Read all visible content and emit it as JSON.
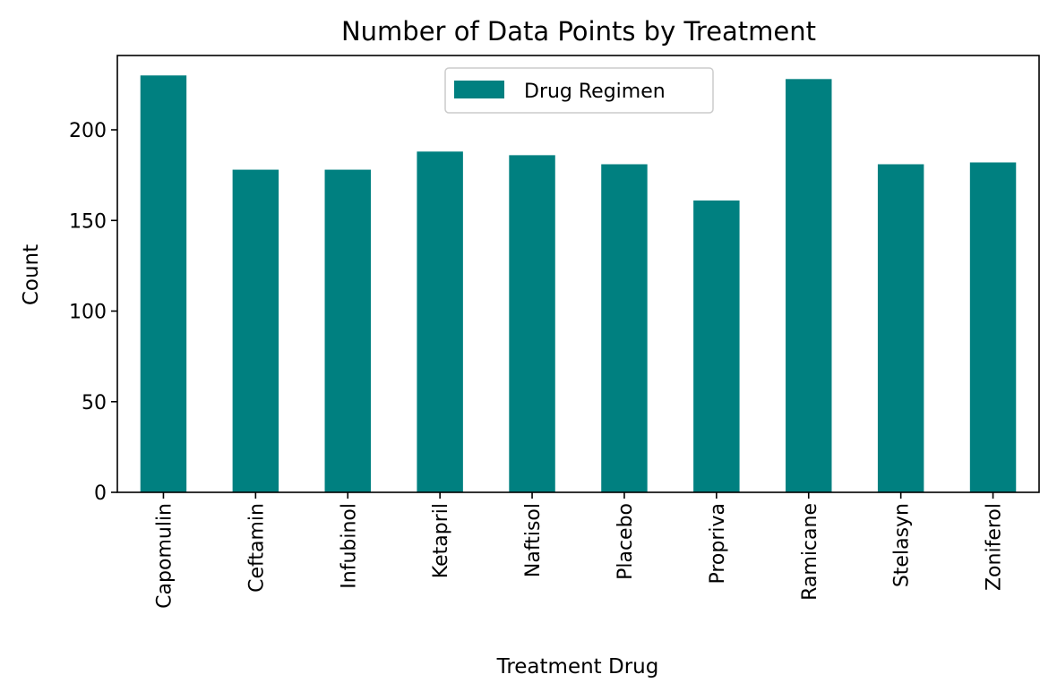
{
  "chart_data": {
    "type": "bar",
    "title": "Number of Data Points by Treatment",
    "xlabel": "Treatment Drug",
    "ylabel": "Count",
    "categories": [
      "Capomulin",
      "Ceftamin",
      "Infubinol",
      "Ketapril",
      "Naftisol",
      "Placebo",
      "Propriva",
      "Ramicane",
      "Stelasyn",
      "Zoniferol"
    ],
    "series": [
      {
        "name": "Drug Regimen",
        "values": [
          230,
          178,
          178,
          188,
          186,
          181,
          161,
          228,
          181,
          182
        ],
        "color": "#008080"
      }
    ],
    "ylim": [
      0,
      241
    ],
    "yticks": [
      0,
      50,
      100,
      150,
      200
    ],
    "grid": false,
    "legend": {
      "position": "top-center"
    }
  }
}
